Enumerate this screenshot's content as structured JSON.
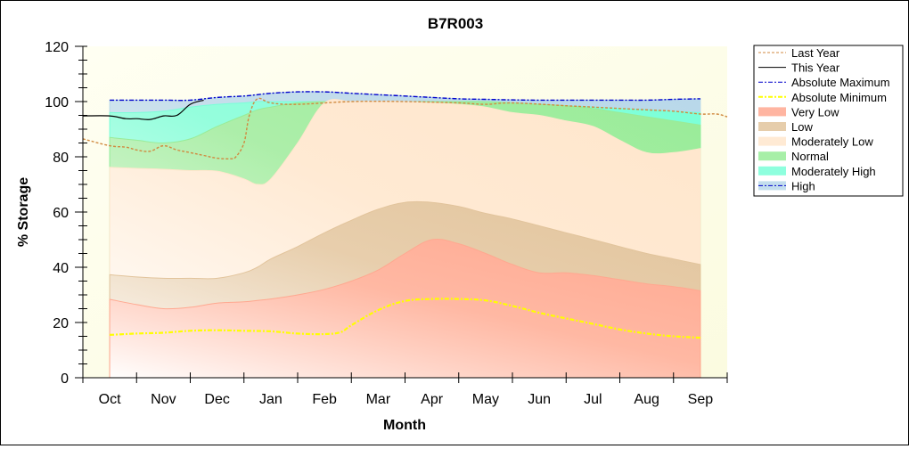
{
  "chart_data": {
    "type": "area",
    "title": "B7R003",
    "xlabel": "Month",
    "ylabel": "% Storage",
    "ylim": [
      0,
      120
    ],
    "yticks": [
      0,
      20,
      40,
      60,
      80,
      100,
      120
    ],
    "y_minor_step": 5,
    "categories": [
      "Oct",
      "Nov",
      "Dec",
      "Jan",
      "Feb",
      "Mar",
      "Apr",
      "May",
      "Jun",
      "Jul",
      "Aug",
      "Sep"
    ],
    "x_note": "x is a month position: 0 = start of axis, category i label centered at i+0.5, axis ends at 12",
    "xlim": [
      0,
      12
    ],
    "legend": {
      "position": "right",
      "entries": [
        {
          "label": "Last Year",
          "kind": "line",
          "color": "#d08a40",
          "dash": "dash"
        },
        {
          "label": "This Year",
          "kind": "line",
          "color": "#000000",
          "dash": "solid"
        },
        {
          "label": "Absolute Maximum",
          "kind": "line",
          "color": "#0000cc",
          "dash": "dashdot"
        },
        {
          "label": "Absolute Minimum",
          "kind": "line",
          "color": "#ffff00",
          "dash": "dashdot"
        },
        {
          "label": "Very Low",
          "kind": "band",
          "color": "#ffa890"
        },
        {
          "label": "Low",
          "kind": "band",
          "color": "#e2c49c"
        },
        {
          "label": "Moderately Low",
          "kind": "band",
          "color": "#ffe6cc"
        },
        {
          "label": "Normal",
          "kind": "band",
          "color": "#98ec98"
        },
        {
          "label": "Moderately High",
          "kind": "band",
          "color": "#7affd8"
        },
        {
          "label": "High",
          "kind": "band",
          "color": "#b8d8ea"
        }
      ]
    },
    "band_x": [
      0.5,
      1.0,
      1.5,
      2.0,
      2.5,
      3.0,
      3.25,
      3.5,
      4.0,
      4.5,
      5.0,
      5.5,
      6.0,
      6.5,
      7.0,
      7.5,
      8.0,
      8.5,
      9.0,
      9.5,
      10.0,
      10.5,
      11.0,
      11.5
    ],
    "bands": [
      {
        "name": "Very Low",
        "color": "#ffa890",
        "top": [
          28.4,
          26.5,
          25.0,
          25.5,
          27.0,
          27.5,
          28.0,
          28.5,
          30.0,
          32.0,
          35.0,
          39.0,
          45.0,
          50.0,
          48.5,
          45.0,
          41.0,
          38.0,
          38.0,
          37.0,
          35.5,
          34.0,
          33.0,
          31.5
        ]
      },
      {
        "name": "Low",
        "color": "#e2c49c",
        "top": [
          37.3,
          36.5,
          36.0,
          36.0,
          36.0,
          38.0,
          40.0,
          43.0,
          47.5,
          52.5,
          57.0,
          61.0,
          63.5,
          63.5,
          62.0,
          59.5,
          57.5,
          55.0,
          52.5,
          50.0,
          47.5,
          45.0,
          43.0,
          41.0
        ]
      },
      {
        "name": "Moderately Low",
        "color": "#ffe6cc",
        "top": [
          76.2,
          75.8,
          75.5,
          75.0,
          74.8,
          72.0,
          70.0,
          72.0,
          85.0,
          99.5,
          100.0,
          100.0,
          100.0,
          99.5,
          99.0,
          98.0,
          96.0,
          95.0,
          93.0,
          91.0,
          86.0,
          81.5,
          81.5,
          83.0
        ]
      },
      {
        "name": "Normal",
        "color": "#98ec98",
        "top": [
          87.0,
          86.0,
          85.0,
          86.5,
          91.0,
          95.0,
          97.0,
          98.0,
          99.5,
          100.0,
          100.0,
          100.0,
          100.0,
          100.0,
          100.0,
          100.0,
          99.5,
          99.0,
          98.5,
          97.5,
          96.0,
          94.5,
          93.0,
          91.5
        ]
      },
      {
        "name": "Moderately High",
        "color": "#7affd8",
        "top": [
          96.0,
          96.0,
          96.5,
          98.0,
          99.0,
          99.5,
          100.0,
          100.0,
          100.0,
          100.0,
          100.0,
          100.0,
          100.0,
          100.0,
          100.0,
          100.0,
          99.5,
          99.0,
          98.5,
          98.0,
          97.5,
          97.0,
          96.5,
          96.0
        ]
      },
      {
        "name": "High",
        "color": "#b8d8ea",
        "top": [
          100.5,
          100.5,
          100.5,
          100.5,
          101.5,
          102.0,
          102.5,
          103.0,
          103.5,
          103.5,
          103.0,
          102.5,
          102.0,
          101.5,
          101.0,
          100.8,
          100.6,
          100.5,
          100.5,
          100.5,
          100.5,
          100.5,
          100.8,
          101.0
        ]
      }
    ],
    "series": [
      {
        "name": "Absolute Maximum",
        "color": "#0000cc",
        "dash": "dashdot",
        "x": [
          0.5,
          1.0,
          1.5,
          2.0,
          2.5,
          3.0,
          3.25,
          3.5,
          4.0,
          4.5,
          5.0,
          5.5,
          6.0,
          6.5,
          7.0,
          7.5,
          8.0,
          8.5,
          9.0,
          9.5,
          10.0,
          10.5,
          11.0,
          11.5
        ],
        "y": [
          100.5,
          100.5,
          100.5,
          100.5,
          101.5,
          102.0,
          102.5,
          103.0,
          103.5,
          103.5,
          103.0,
          102.5,
          102.0,
          101.5,
          101.0,
          100.8,
          100.6,
          100.5,
          100.5,
          100.5,
          100.5,
          100.5,
          100.8,
          101.0
        ]
      },
      {
        "name": "Absolute Minimum",
        "color": "#ffff00",
        "dash": "dashdot",
        "x": [
          0.5,
          1.0,
          1.5,
          2.0,
          2.5,
          3.0,
          3.5,
          4.0,
          4.5,
          4.8,
          5.0,
          5.5,
          6.0,
          6.5,
          7.0,
          7.5,
          8.0,
          8.5,
          9.0,
          9.5,
          10.0,
          10.5,
          11.0,
          11.5
        ],
        "y": [
          15.5,
          16.0,
          16.3,
          17.0,
          17.2,
          17.0,
          16.8,
          16.0,
          15.8,
          16.5,
          19.0,
          24.5,
          27.8,
          28.5,
          28.5,
          28.0,
          26.0,
          23.5,
          21.5,
          19.5,
          17.5,
          16.0,
          15.0,
          14.5
        ]
      },
      {
        "name": "Last Year",
        "color": "#d08a40",
        "dash": "dash",
        "x": [
          0.0,
          0.5,
          0.8,
          1.0,
          1.25,
          1.5,
          1.75,
          2.0,
          2.25,
          2.5,
          2.75,
          2.85,
          3.0,
          3.1,
          3.25,
          3.5,
          4.0,
          5.0,
          6.0,
          7.0,
          7.5,
          8.0,
          9.0,
          9.5,
          10.0,
          10.5,
          11.0,
          11.5,
          11.8,
          12.0
        ],
        "y": [
          86.5,
          84.0,
          83.5,
          82.5,
          82.0,
          84.0,
          82.5,
          81.5,
          80.5,
          79.5,
          79.3,
          80.0,
          85.0,
          95.0,
          101.0,
          99.5,
          99.0,
          100.0,
          100.0,
          99.5,
          99.0,
          99.5,
          98.5,
          98.0,
          97.5,
          97.0,
          96.5,
          95.5,
          95.5,
          94.5
        ]
      },
      {
        "name": "This Year",
        "color": "#000000",
        "dash": "solid",
        "x": [
          0.0,
          0.5,
          0.8,
          1.0,
          1.25,
          1.5,
          1.75,
          2.0,
          2.25
        ],
        "y": [
          94.8,
          94.8,
          93.8,
          93.8,
          93.5,
          94.8,
          95.0,
          99.0,
          100.5
        ]
      }
    ]
  }
}
